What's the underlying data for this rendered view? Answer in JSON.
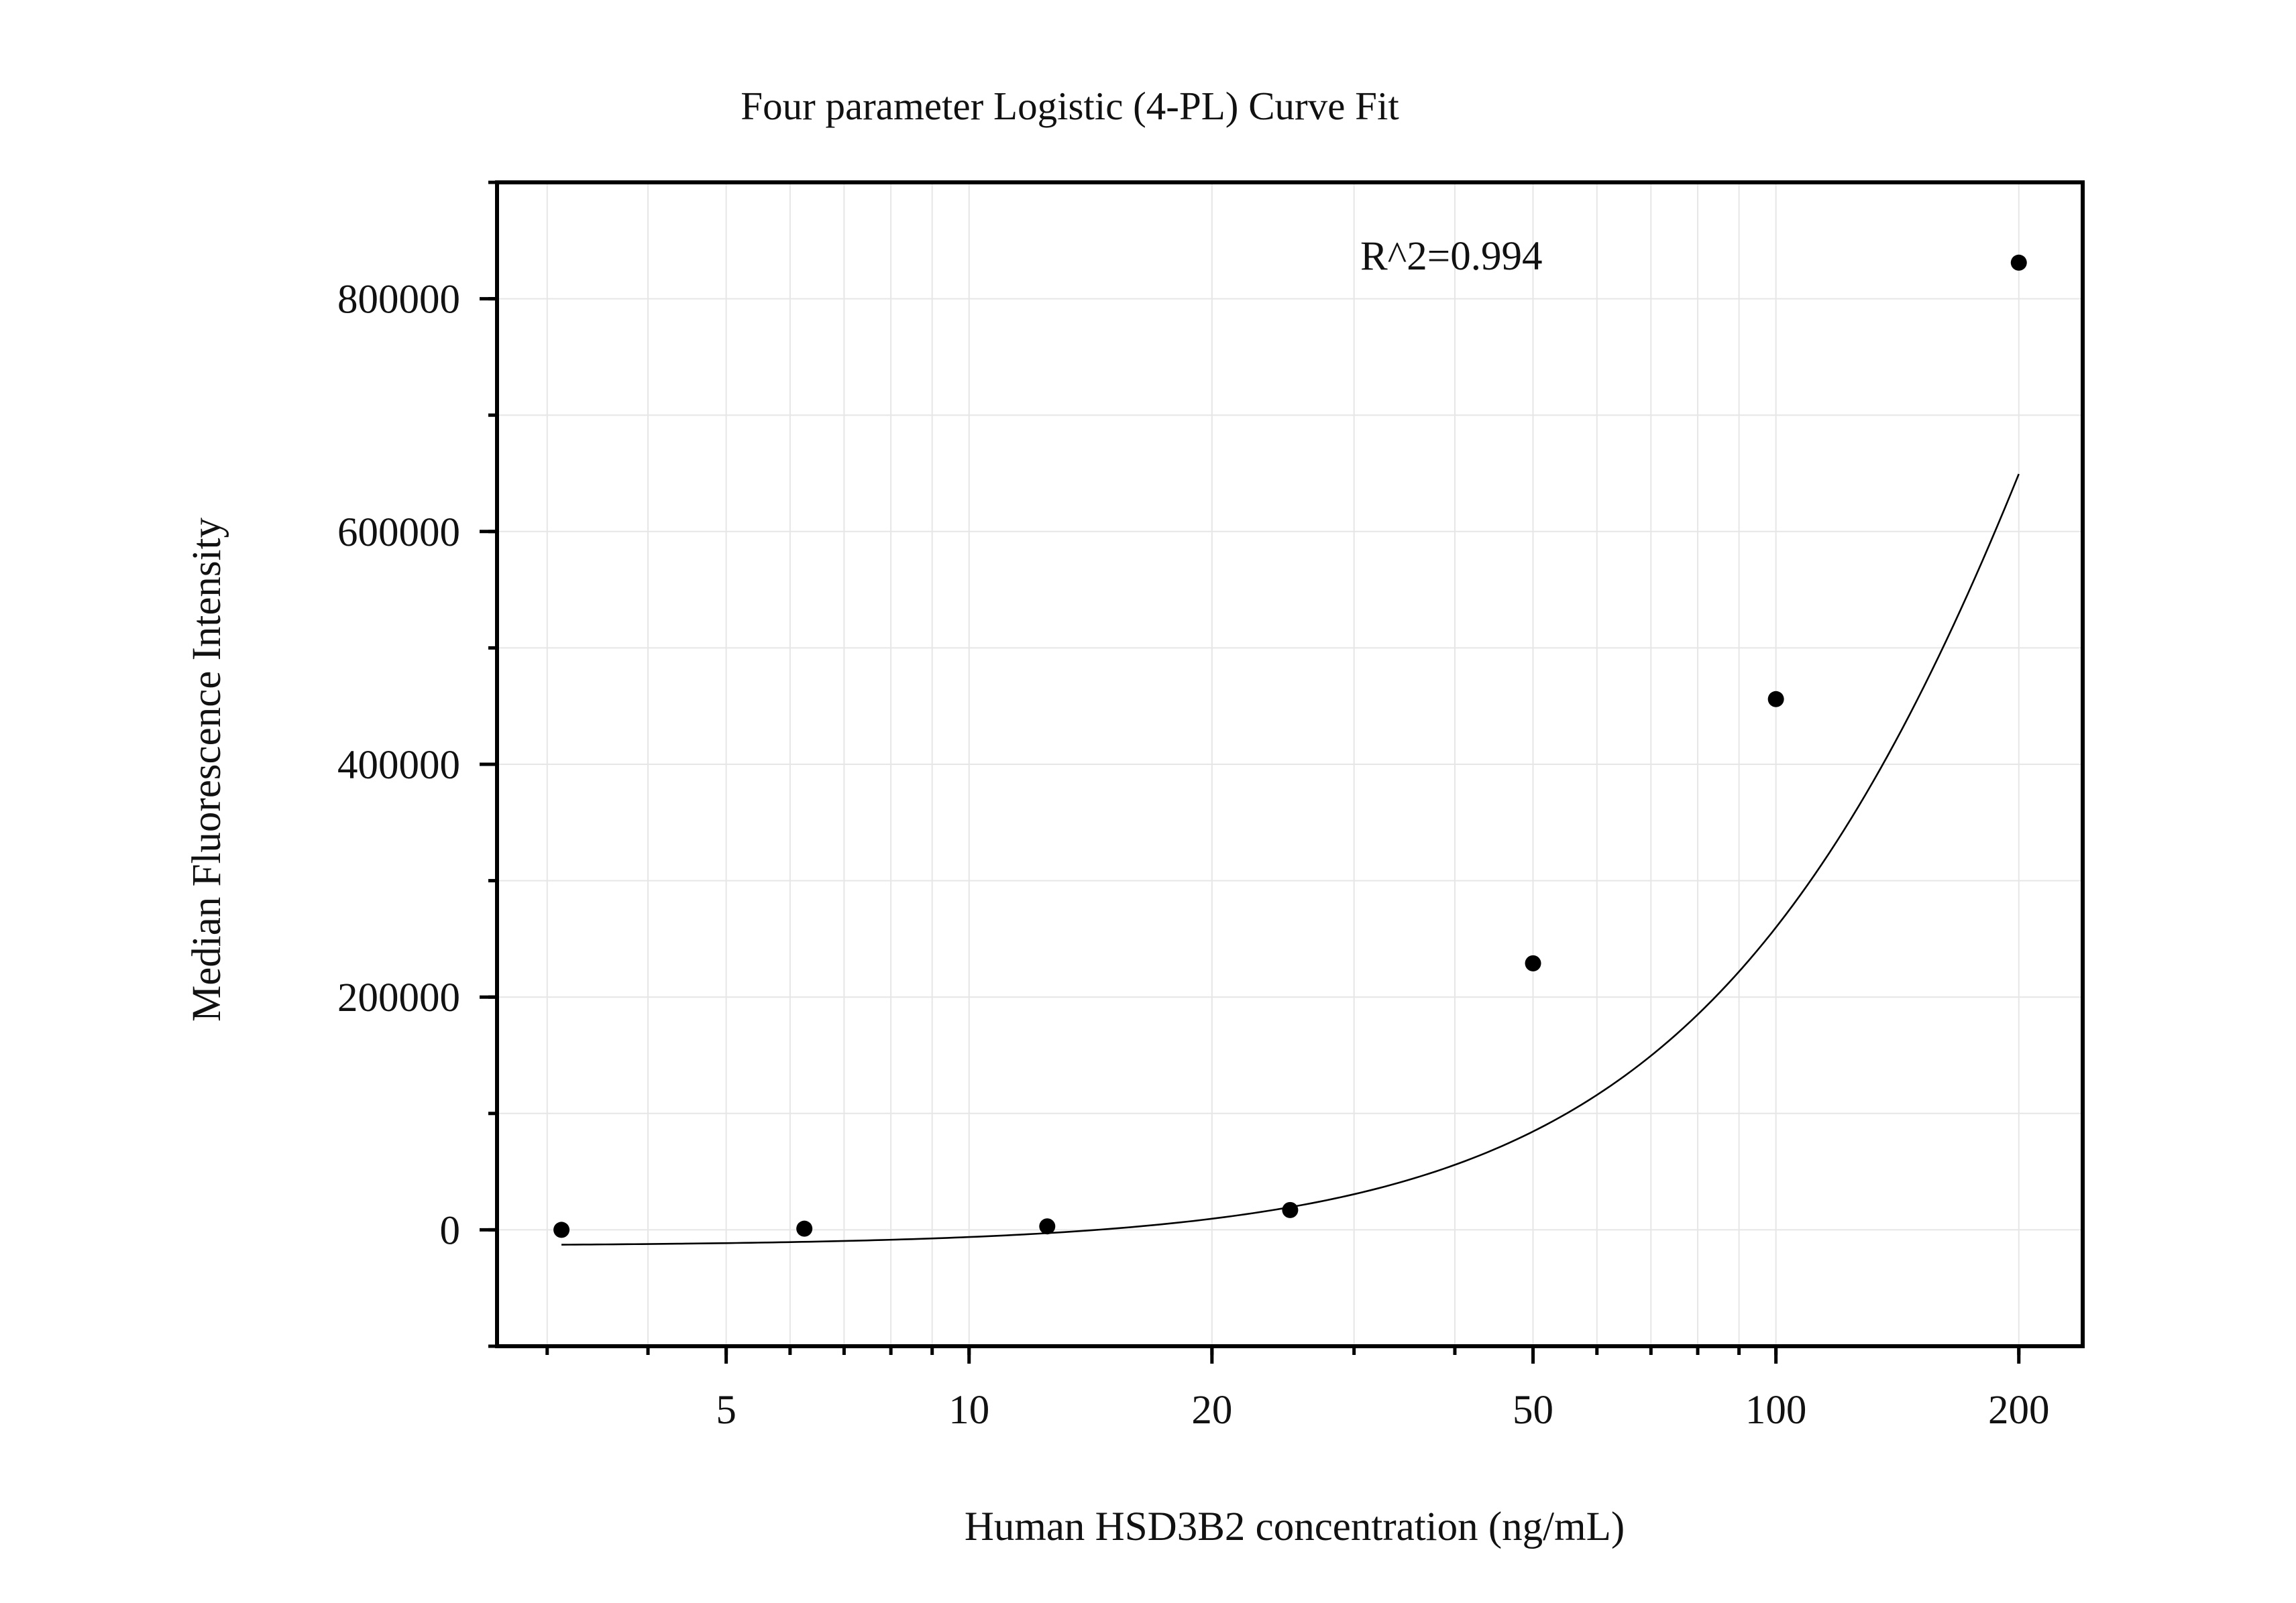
{
  "chart_data": {
    "type": "scatter",
    "title": "Four parameter Logistic (4-PL) Curve Fit",
    "xlabel": "Human HSD3B2 concentration (ng/mL)",
    "ylabel": "Median Fluorescence Intensity",
    "annotation": "R^2=0.994",
    "x_scale": "log",
    "xlim": [
      2.6,
      240
    ],
    "ylim": [
      -100000,
      900000
    ],
    "grid": true,
    "x_ticks": [
      {
        "value": 5,
        "label": "5"
      },
      {
        "value": 10,
        "label": "10"
      },
      {
        "value": 20,
        "label": "20"
      },
      {
        "value": 50,
        "label": "50"
      },
      {
        "value": 100,
        "label": "100"
      },
      {
        "value": 200,
        "label": "200"
      }
    ],
    "y_ticks": [
      {
        "value": 0,
        "label": "0"
      },
      {
        "value": 200000,
        "label": "200000"
      },
      {
        "value": 400000,
        "label": "400000"
      },
      {
        "value": 600000,
        "label": "600000"
      },
      {
        "value": 800000,
        "label": "800000"
      }
    ],
    "series": [
      {
        "kind": "points",
        "x": [
          3.125,
          6.25,
          12.5,
          25,
          50,
          100,
          200
        ],
        "y": [
          0,
          1000,
          3000,
          17000,
          229000,
          456000,
          831000
        ]
      },
      {
        "kind": "fit-curve",
        "model": "4PL",
        "params": {
          "A": -14000,
          "D": 2200000,
          "C": 340,
          "B": 1.6
        },
        "x_range": [
          3.125,
          200
        ]
      }
    ]
  }
}
